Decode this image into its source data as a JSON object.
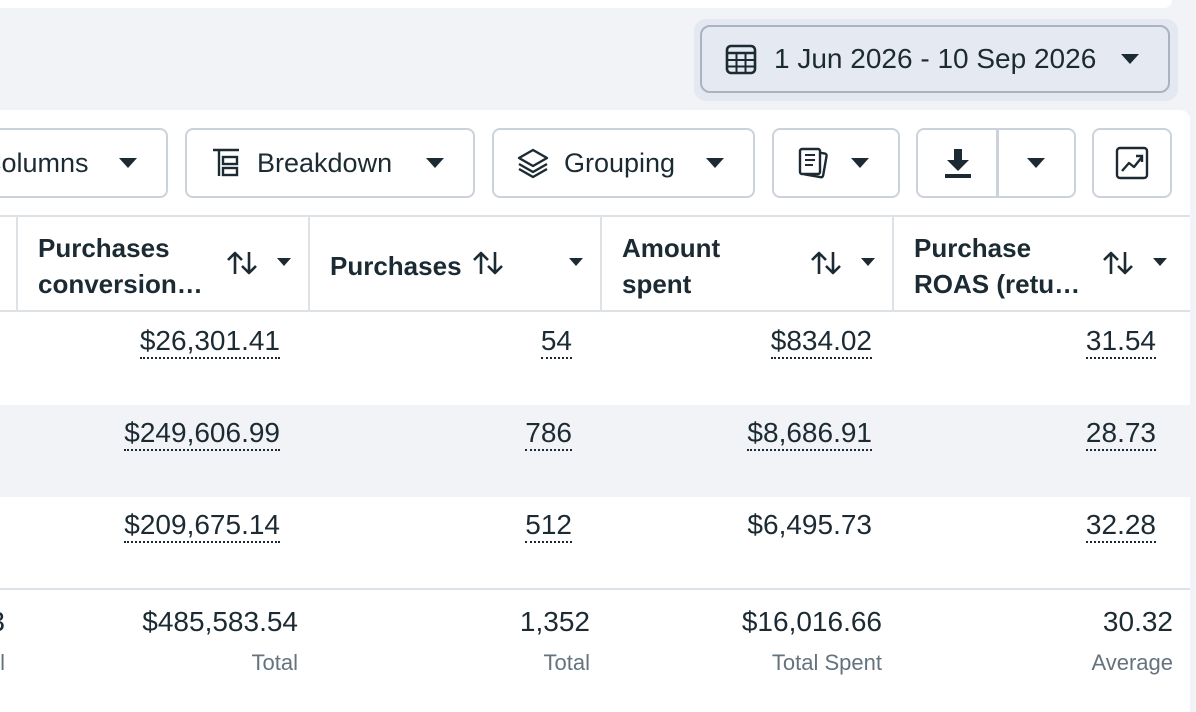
{
  "date_range": {
    "label": "1 Jun 2026 - 10 Sep 2026",
    "icon": "calendar-icon"
  },
  "toolbar": {
    "columns_label": "Columns",
    "breakdown_label": "Breakdown",
    "grouping_label": "Grouping",
    "reports_icon": "reports-icon",
    "export_icon": "download-icon",
    "chart_icon": "chart-icon"
  },
  "table": {
    "headers": [
      {
        "line1": "Purchases",
        "line2": "conversion…"
      },
      {
        "line1": "Purchases",
        "line2": ""
      },
      {
        "line1": "Amount",
        "line2": "spent"
      },
      {
        "line1": "Purchase",
        "line2": "ROAS (retu…"
      }
    ],
    "rows": [
      {
        "conversion": "$26,301.41",
        "purchases": "54",
        "spent": "$834.02",
        "roas": "31.54"
      },
      {
        "conversion": "$249,606.99",
        "purchases": "786",
        "spent": "$8,686.91",
        "roas": "28.73"
      },
      {
        "conversion": "$209,675.14",
        "purchases": "512",
        "spent": "$6,495.73",
        "roas": "32.28"
      }
    ],
    "totals": {
      "partial_value": "3",
      "partial_label": "l",
      "conversion": "$485,583.54",
      "conversion_label": "Total",
      "purchases": "1,352",
      "purchases_label": "Total",
      "spent": "$16,016.66",
      "spent_label": "Total Spent",
      "roas": "30.32",
      "roas_label": "Average"
    }
  },
  "colors": {
    "text": "#1c2b33",
    "muted": "#65737e",
    "border": "#cbd2d9",
    "stripe": "#f1f3f6"
  }
}
